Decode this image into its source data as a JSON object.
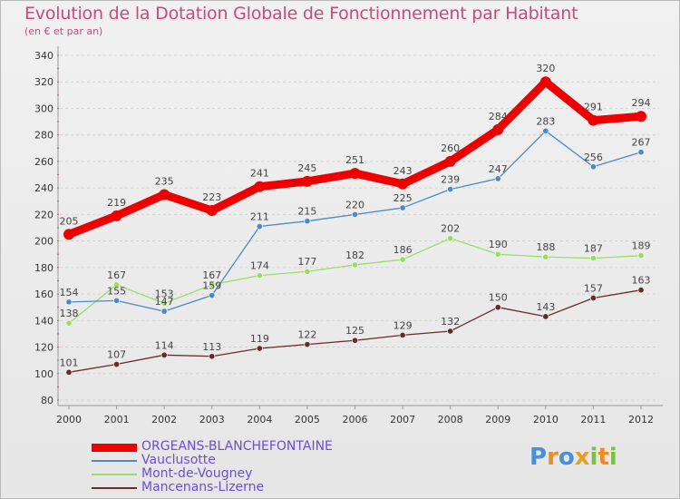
{
  "colors": {
    "title": "#c84a7d",
    "legend_text": "#6a4fd0",
    "brand_p": "#4a8fd8",
    "brand_r": "#f08a24",
    "brand_o": "#4a8fd8",
    "brand_x": "#e8a020",
    "brand_i": "#7cc242",
    "brand_t": "#f08a24",
    "brand_i2": "#7cc242"
  },
  "brand": {
    "letters": [
      "P",
      "r",
      "o",
      "x",
      "i",
      "t",
      "i"
    ]
  },
  "chart_data": {
    "type": "line",
    "title": "Evolution de la Dotation Globale de Fonctionnement par Habitant",
    "subtitle": "(en € et par an)",
    "xlabel": "",
    "ylabel": "",
    "ylim": [
      80,
      340
    ],
    "yticks": [
      80,
      100,
      120,
      140,
      160,
      180,
      200,
      220,
      240,
      260,
      280,
      300,
      320,
      340
    ],
    "grid": true,
    "legend_position": "bottom-left",
    "categories": [
      "2000",
      "2001",
      "2002",
      "2003",
      "2004",
      "2005",
      "2006",
      "2007",
      "2008",
      "2009",
      "2010",
      "2011",
      "2012"
    ],
    "series": [
      {
        "name": "ORGEANS-BLANCHEFONTAINE",
        "color": "#ee0000",
        "values": [
          205,
          219,
          235,
          223,
          241,
          245,
          251,
          243,
          260,
          284,
          320,
          291,
          294
        ]
      },
      {
        "name": "Vauclusotte",
        "color": "#4a8ac8",
        "values": [
          154,
          155,
          147,
          159,
          211,
          215,
          220,
          225,
          239,
          247,
          283,
          256,
          267
        ]
      },
      {
        "name": "Mont-de-Vougney",
        "color": "#99dd66",
        "values": [
          138,
          167,
          153,
          167,
          174,
          177,
          182,
          186,
          202,
          190,
          188,
          187,
          189
        ]
      },
      {
        "name": "Mancenans-Lizerne",
        "color": "#6b2a2a",
        "values": [
          101,
          107,
          114,
          113,
          119,
          122,
          125,
          129,
          132,
          150,
          143,
          157,
          163
        ]
      }
    ]
  }
}
